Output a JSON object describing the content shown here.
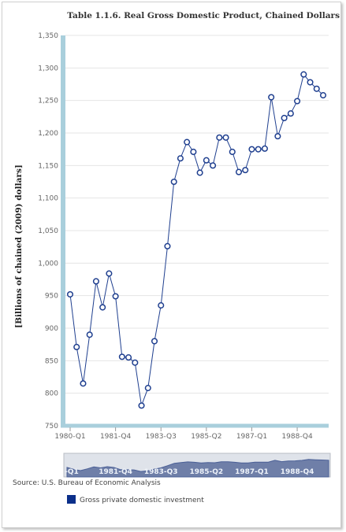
{
  "chart_data": {
    "type": "line",
    "title": "Table 1.1.6. Real Gross Domestic Product, Chained Dollars",
    "xlabel": "",
    "ylabel": "[Billions of chained (2009) dollars]",
    "ylim": [
      750,
      1350
    ],
    "yticks": [
      750,
      800,
      850,
      900,
      950,
      1000,
      1050,
      1100,
      1150,
      1200,
      1250,
      1300,
      1350
    ],
    "ytick_labels": [
      "750",
      "800",
      "850",
      "900",
      "950",
      "1,000",
      "1,050",
      "1,100",
      "1,150",
      "1,200",
      "1,250",
      "1,300",
      "1,350"
    ],
    "x": [
      "1980-Q1",
      "1980-Q2",
      "1980-Q3",
      "1980-Q4",
      "1981-Q1",
      "1981-Q2",
      "1981-Q3",
      "1981-Q4",
      "1982-Q1",
      "1982-Q2",
      "1982-Q3",
      "1982-Q4",
      "1983-Q1",
      "1983-Q2",
      "1983-Q3",
      "1983-Q4",
      "1984-Q1",
      "1984-Q2",
      "1984-Q3",
      "1984-Q4",
      "1985-Q1",
      "1985-Q2",
      "1985-Q3",
      "1985-Q4",
      "1986-Q1",
      "1986-Q2",
      "1986-Q3",
      "1986-Q4",
      "1987-Q1",
      "1987-Q2",
      "1987-Q3",
      "1987-Q4",
      "1988-Q1",
      "1988-Q2",
      "1988-Q3",
      "1988-Q4",
      "1989-Q1",
      "1989-Q2",
      "1989-Q3",
      "1989-Q4"
    ],
    "xtick_labels": [
      "1980-Q1",
      "1981-Q4",
      "1983-Q3",
      "1985-Q2",
      "1987-Q1",
      "1988-Q4"
    ],
    "series": [
      {
        "name": "Gross private domestic investment",
        "color": "#1f3f8f",
        "values": [
          952,
          871,
          815,
          890,
          972,
          932,
          984,
          949,
          856,
          855,
          847,
          781,
          808,
          880,
          935,
          1026,
          1125,
          1161,
          1186,
          1171,
          1139,
          1158,
          1150,
          1193,
          1193,
          1171,
          1140,
          1143,
          1175,
          1175,
          1176,
          1255,
          1195,
          1223,
          1230,
          1249,
          1290,
          1278,
          1268,
          1258
        ]
      }
    ],
    "grid": true,
    "legend_position": "bottom-left",
    "navigator_labels": [
      "-Q1",
      "1981-Q4",
      "1983-Q3",
      "1985-Q2",
      "1987-Q1",
      "1988-Q4"
    ]
  },
  "source": "Source: U.S. Bureau of Economic Analysis",
  "legend_label": "Gross private domestic investment",
  "colors": {
    "axis_bar": "#a9cfdc",
    "series": "#1f3f8f",
    "marker_fill": "#ffffff",
    "navigator_fill": "#6f7fa8",
    "navigator_bg": "#dfe3ea",
    "legend_swatch": "#0b2f8a"
  }
}
